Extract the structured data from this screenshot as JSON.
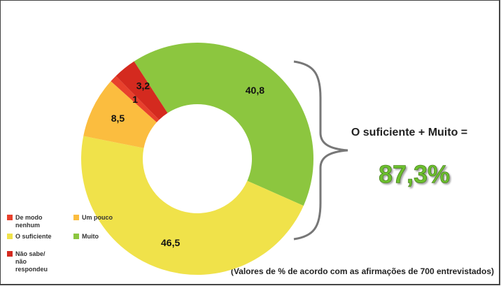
{
  "chart_data": {
    "type": "donut",
    "categories": [
      "Muito",
      "O suficiente",
      "Um pouco",
      "De modo nenhum",
      "Não sabe/ não respondeu"
    ],
    "values": [
      40.8,
      46.5,
      8.5,
      1,
      3.2
    ],
    "value_labels": [
      "40,8",
      "46,5",
      "8,5",
      "1",
      "3,2"
    ],
    "colors": [
      "#8cc63f",
      "#f0e24a",
      "#fbbd3f",
      "#e8402c",
      "#d42a1f"
    ],
    "annotation": "O suficiente + Muito =",
    "annotation_value": "87,3%",
    "footnote": "(Valores de % de acordo com as afirmações de 700 entrevistados)"
  }
}
